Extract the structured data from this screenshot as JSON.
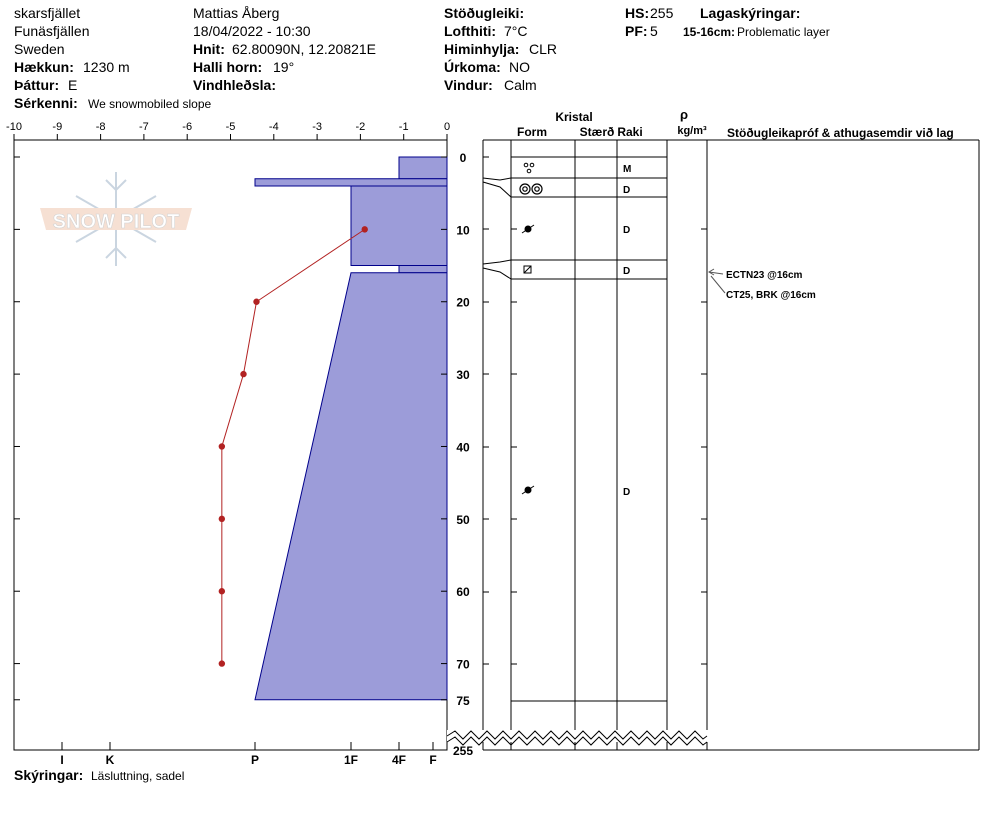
{
  "header": {
    "location": "skarsfjället",
    "area": "Funäsfjällen",
    "country": "Sweden",
    "elevation_label": "Hækkun:",
    "elevation_value": "1230 m",
    "aspect_label": "Þáttur:",
    "aspect_value": "E",
    "feature_label": "Sérkenni:",
    "feature_value": "We snowmobiled slope",
    "observer": "Mattias Åberg",
    "datetime": "18/04/2022 - 10:30",
    "coords_label": "Hnit:",
    "coords_value": "62.80090N, 12.20821E",
    "slope_label": "Halli horn:",
    "slope_value": "19°",
    "wind_loading_label": "Vindhleðsla:",
    "stability_label": "Stöðugleiki:",
    "air_temp_label": "Lofthiti:",
    "air_temp_value": "7°C",
    "sky_label": "Himinhylja:",
    "sky_value": "CLR",
    "precip_label": "Úrkoma:",
    "precip_value": "NO",
    "wind_label": "Vindur:",
    "wind_value": "Calm",
    "hs_label": "HS:",
    "hs_value": "255",
    "pf_label": "PF:",
    "pf_value": "5",
    "layer_notes_label": "Lagaskýringar:",
    "layer_notes_range": "15-16cm:",
    "layer_notes_text": "Problematic layer",
    "notes_label": "Skýringar:",
    "notes_value": "Läsluttning, sadel"
  },
  "logo_text": "SNOW PILOT",
  "columns": {
    "kristal": "Kristal",
    "form": "Form",
    "size": "Stærð",
    "moisture": "Raki",
    "rho": "ρ",
    "density_unit": "kg/m³",
    "tests_header": "Stöðugleikapróf & athugasemdir við lag"
  },
  "colors": {
    "hardness_fill": "#9c9cd9",
    "hardness_stroke": "#00008b",
    "temp_line": "#b22222",
    "temp_point": "#b22222"
  },
  "chart_data": {
    "type": "line",
    "temp_axis_ticks": [
      "-10",
      "-9",
      "-8",
      "-7",
      "-6",
      "-5",
      "-4",
      "-3",
      "-2",
      "-1",
      "0"
    ],
    "temp_range": [
      -10,
      0
    ],
    "depth_ticks": [
      "0",
      "10",
      "20",
      "30",
      "40",
      "50",
      "60",
      "70",
      "75",
      "255"
    ],
    "depth_range_cm": [
      0,
      75
    ],
    "hardness_labels": [
      "I",
      "K",
      "P",
      "1F",
      "4F",
      "F"
    ],
    "temperature_profile": {
      "depth_cm": [
        10,
        20,
        30,
        40,
        50,
        60,
        70
      ],
      "temp_c": [
        -1.9,
        -4.4,
        -4.7,
        -5.2,
        -5.2,
        -5.2,
        -5.2
      ]
    },
    "layers": [
      {
        "top": 0,
        "bottom": 3,
        "hardness_top": "4F",
        "hardness_bottom": "4F",
        "moisture": ""
      },
      {
        "top": 3,
        "bottom": 4,
        "hardness_top": "P",
        "hardness_bottom": "P",
        "moisture": "M"
      },
      {
        "top": 4,
        "bottom": 15,
        "hardness_top": "1F",
        "hardness_bottom": "1F",
        "moisture": "D"
      },
      {
        "top": 15,
        "bottom": 16,
        "hardness_top": "4F",
        "hardness_bottom": "4F",
        "moisture": "D"
      },
      {
        "top": 16,
        "bottom": 75,
        "hardness_top": "1F",
        "hardness_bottom": "P",
        "moisture": "D"
      }
    ],
    "grain_rows": [
      {
        "symbol": "°°",
        "moisture": "M"
      },
      {
        "symbol": "◎◎",
        "moisture": "D"
      },
      {
        "symbol": "●",
        "moisture": "D"
      },
      {
        "symbol": "⊠",
        "moisture": "D"
      },
      {
        "symbol": "●",
        "moisture": "D"
      }
    ],
    "stability_tests": [
      "ECTN23 @16cm",
      "CT25, BRK @16cm"
    ]
  }
}
